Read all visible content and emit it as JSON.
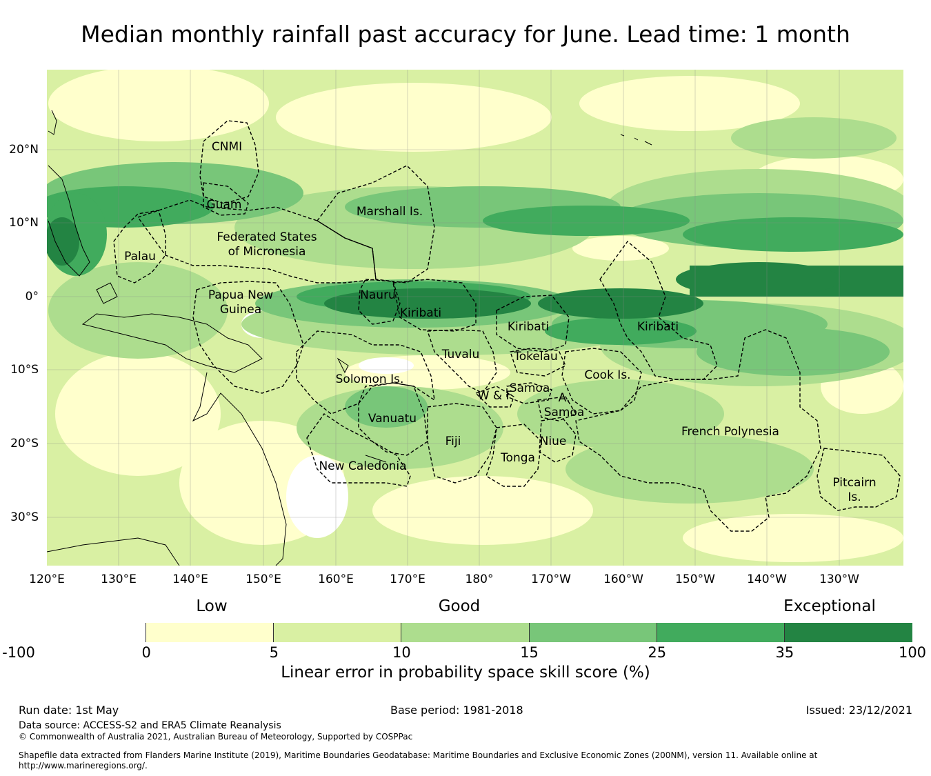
{
  "title": "Median monthly rainfall past accuracy for June. Lead time: 1 month",
  "map": {
    "lon_ticks": [
      "120°E",
      "130°E",
      "140°E",
      "150°E",
      "160°E",
      "170°E",
      "180°",
      "170°W",
      "160°W",
      "150°W",
      "140°W",
      "130°W"
    ],
    "lat_ticks": [
      "20°N",
      "10°N",
      "0°",
      "10°S",
      "20°S",
      "30°S"
    ],
    "regions": [
      {
        "id": "cnmi",
        "lines": [
          "CNMI"
        ]
      },
      {
        "id": "guam",
        "lines": [
          "Guam"
        ]
      },
      {
        "id": "marshall",
        "lines": [
          "Marshall Is."
        ]
      },
      {
        "id": "fsm",
        "lines": [
          "Federated States",
          "of Micronesia"
        ]
      },
      {
        "id": "palau",
        "lines": [
          "Palau"
        ]
      },
      {
        "id": "png",
        "lines": [
          "Papua New",
          "Guinea"
        ]
      },
      {
        "id": "nauru",
        "lines": [
          "Nauru"
        ]
      },
      {
        "id": "kiribati-w",
        "lines": [
          "Kiribati"
        ]
      },
      {
        "id": "kiribati-c",
        "lines": [
          "Kiribati"
        ]
      },
      {
        "id": "kiribati-e",
        "lines": [
          "Kiribati"
        ]
      },
      {
        "id": "tuvalu",
        "lines": [
          "Tuvalu"
        ]
      },
      {
        "id": "tokelau",
        "lines": [
          "Tokelau"
        ]
      },
      {
        "id": "solomon",
        "lines": [
          "Solomon Is."
        ]
      },
      {
        "id": "cook",
        "lines": [
          "Cook Is."
        ]
      },
      {
        "id": "samoa",
        "lines": [
          "Samoa"
        ]
      },
      {
        "id": "wf",
        "lines": [
          "W & F"
        ]
      },
      {
        "id": "asamoa",
        "lines": [
          "A.",
          "Samoa"
        ]
      },
      {
        "id": "vanuatu",
        "lines": [
          "Vanuatu"
        ]
      },
      {
        "id": "fiji",
        "lines": [
          "Fiji"
        ]
      },
      {
        "id": "niue",
        "lines": [
          "Niue"
        ]
      },
      {
        "id": "tonga",
        "lines": [
          "Tonga"
        ]
      },
      {
        "id": "newcal",
        "lines": [
          "New Caledonia"
        ]
      },
      {
        "id": "frpoly",
        "lines": [
          "French Polynesia"
        ]
      },
      {
        "id": "pitcairn",
        "lines": [
          "Pitcairn",
          "Is."
        ]
      }
    ]
  },
  "legend": {
    "categories": [
      "Low",
      "Good",
      "Exceptional"
    ],
    "colors": [
      "#ffffff",
      "#ffffcc",
      "#d9f0a3",
      "#addd8e",
      "#78c679",
      "#41ab5d",
      "#238443"
    ],
    "ticks": [
      "-100",
      "0",
      "5",
      "10",
      "15",
      "25",
      "35",
      "100"
    ],
    "caption": "Linear error in probability space skill score (%)"
  },
  "footer": {
    "run_date": "Run date: 1st May",
    "base_period": "Base period: 1981-2018",
    "issued": "Issued: 23/12/2021",
    "data_source": "Data source: ACCESS-S2 and ERA5 Climate Reanalysis",
    "copyright": "© Commonwealth of Australia 2021, Australian Bureau of Meteorology, Supported by COSPPac",
    "shapefile": "Shapefile data extracted from Flanders Marine Institute (2019), Maritime Boundaries Geodatabase: Maritime Boundaries and Exclusive Economic Zones (200NM), version 11. Available online at http://www.marineregions.org/."
  }
}
